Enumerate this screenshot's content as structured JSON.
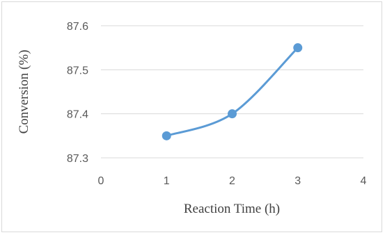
{
  "chart_data": {
    "type": "scatter",
    "title": "",
    "xlabel": "Reaction Time (h)",
    "ylabel": "Conversion (%)",
    "xlim": [
      0,
      4
    ],
    "ylim": [
      87.3,
      87.6
    ],
    "x_ticks": [
      0,
      1,
      2,
      3,
      4
    ],
    "y_ticks": [
      87.3,
      87.4,
      87.5,
      87.6
    ],
    "x_tick_labels": [
      "0",
      "1",
      "2",
      "3",
      "4"
    ],
    "y_tick_labels": [
      "87.3",
      "87.4",
      "87.5",
      "87.6"
    ],
    "grid": "horizontal",
    "legend": "none",
    "line": "smooth",
    "series": [
      {
        "x": [
          1,
          2,
          3
        ],
        "y": [
          87.35,
          87.4,
          87.55
        ]
      }
    ],
    "colors": {
      "series": "#5b9bd5",
      "grid": "#d9d9d9",
      "text": "#595959"
    }
  }
}
